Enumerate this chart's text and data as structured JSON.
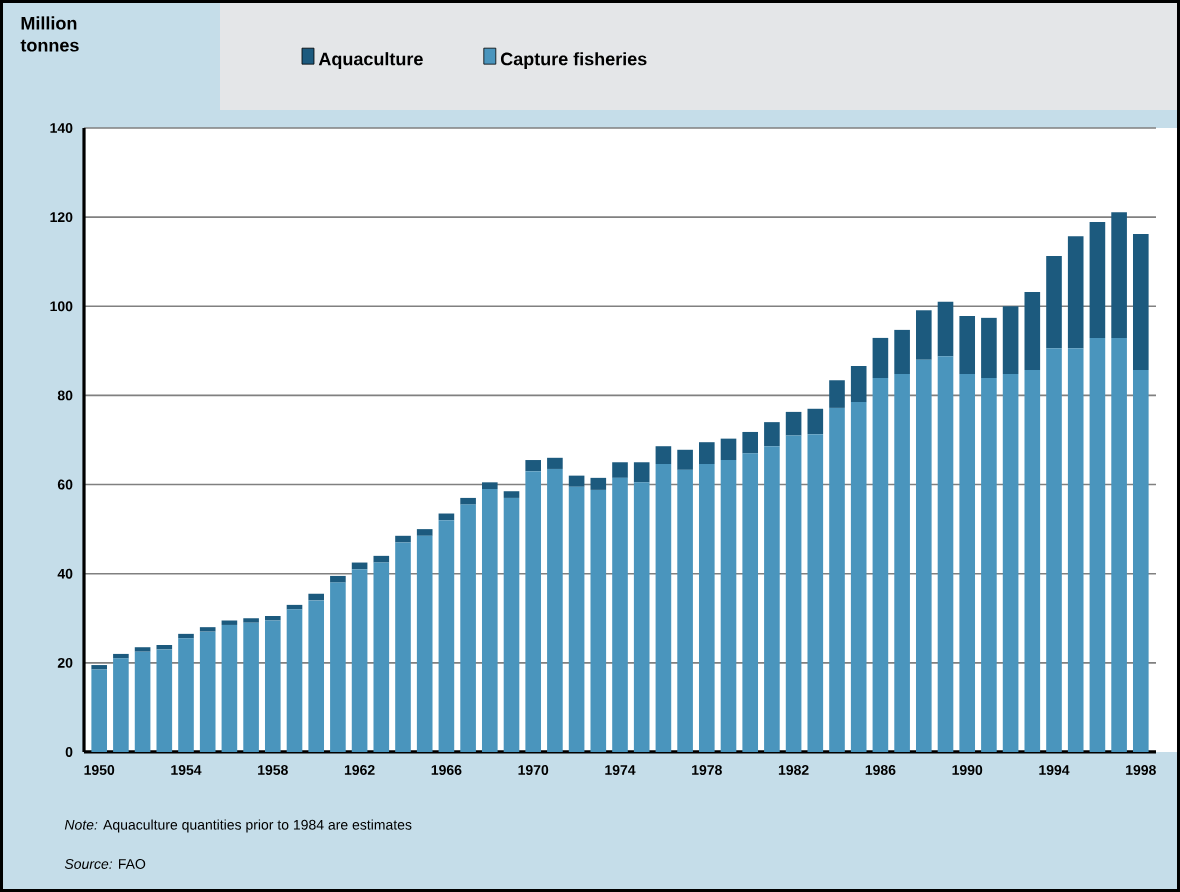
{
  "chart_data": {
    "type": "bar",
    "stacked": true,
    "ylabel": "Million tonnes",
    "categories": [
      "1950",
      null,
      null,
      null,
      "1954",
      null,
      null,
      null,
      "1958",
      null,
      null,
      null,
      "1962",
      null,
      null,
      null,
      "1966",
      null,
      null,
      null,
      "1970",
      null,
      null,
      null,
      "1974",
      null,
      null,
      null,
      "1978",
      null,
      null,
      null,
      "1982",
      null,
      null,
      null,
      "1986",
      null,
      null,
      null,
      "1990",
      null,
      null,
      null,
      "1994",
      null,
      null,
      null,
      "1998"
    ],
    "series": [
      {
        "name": "Capture fisheries",
        "color": "#4a95bd",
        "values": [
          18.5,
          21,
          22.5,
          23,
          25.5,
          27,
          28.5,
          29,
          29.5,
          32,
          34,
          38,
          41,
          42.5,
          47,
          48.5,
          52,
          55.5,
          59,
          57,
          63,
          63.5,
          59.5,
          58.8,
          61.5,
          60.5,
          64.6,
          63.3,
          64.6,
          65.5,
          67,
          68.6,
          71,
          71.3,
          77.2,
          78.5,
          83.9,
          84.8,
          88,
          88.8,
          84.8,
          83.9,
          84.8,
          85.7,
          90.6,
          90.6,
          92.9,
          92.9,
          85.7
        ]
      },
      {
        "name": "Aquaculture",
        "color": "#1c5a7e",
        "values": [
          1,
          1,
          1,
          1,
          1,
          1,
          1,
          1,
          1,
          1,
          1.5,
          1.5,
          1.5,
          1.5,
          1.5,
          1.5,
          1.5,
          1.5,
          1.5,
          1.5,
          2.5,
          2.5,
          2.5,
          2.7,
          3.5,
          4.5,
          4,
          4.5,
          4.9,
          4.8,
          4.8,
          5.4,
          5.3,
          5.7,
          6.2,
          8.1,
          9,
          9.9,
          11.1,
          12.2,
          13,
          13.5,
          15.2,
          17.5,
          20.7,
          25.1,
          26,
          28.2,
          30.5
        ]
      }
    ],
    "ylim": [
      0,
      140
    ],
    "yticks": [
      0,
      20,
      40,
      60,
      80,
      100,
      120,
      140
    ],
    "grid": "y",
    "legend": "top",
    "annotations": [
      "*Note:* Aquaculture quantities prior to 1984 are estimates",
      "*Source:* FAO"
    ]
  }
}
